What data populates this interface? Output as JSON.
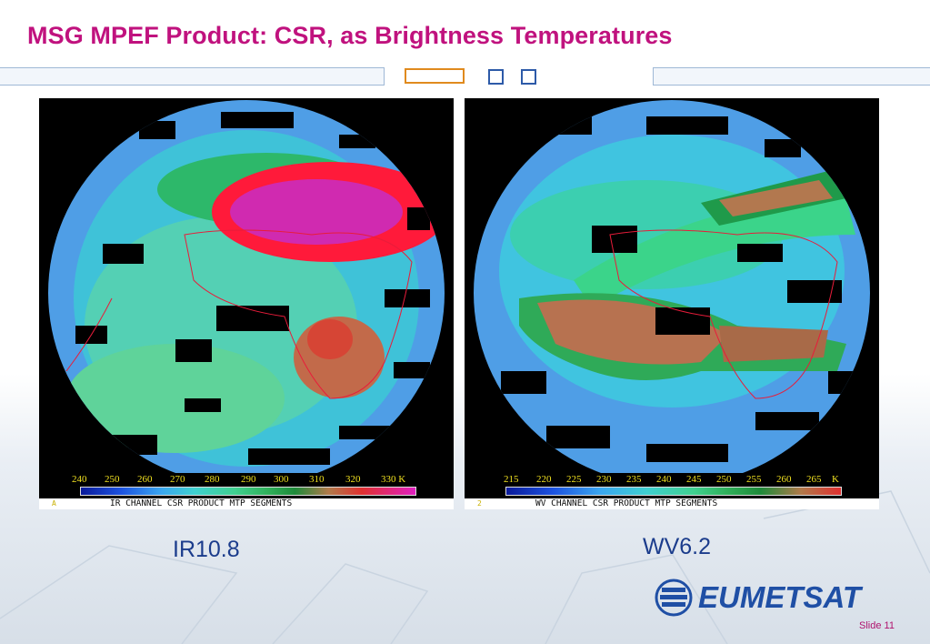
{
  "slide": {
    "title": "MSG MPEF Product: CSR, as Brightness Temperatures",
    "slide_number": "Slide 11"
  },
  "panels": [
    {
      "label": "IR10.8",
      "scale_values": [
        "240",
        "250",
        "260",
        "270",
        "280",
        "290",
        "300",
        "310",
        "320",
        "330 K"
      ],
      "caption": "IR CHANNEL CSR PRODUCT MTP SEGMENTS",
      "corner_mark": "A"
    },
    {
      "label": "WV6.2",
      "scale_values": [
        "215",
        "220",
        "225",
        "230",
        "235",
        "240",
        "245",
        "250",
        "255",
        "260",
        "265",
        "K"
      ],
      "caption": "WV CHANNEL CSR PRODUCT MTP SEGMENTS",
      "corner_mark": "2"
    }
  ],
  "logo": {
    "text": "EUMETSAT"
  },
  "colors": {
    "title": "#c0127e",
    "label": "#1b3c8c",
    "logo": "#1f4fa5",
    "scale_text": "#f0e020"
  }
}
